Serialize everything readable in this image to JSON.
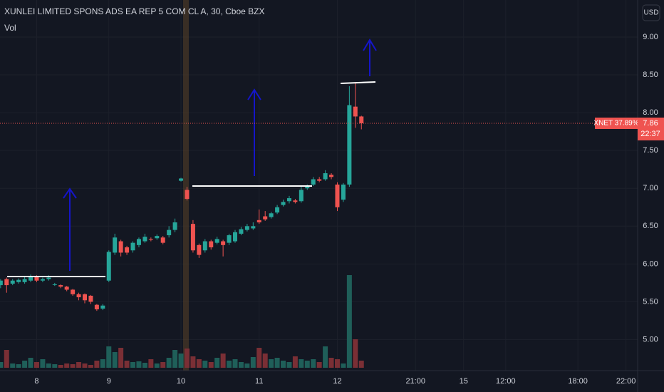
{
  "chart_data": {
    "type": "candlestick",
    "title": "XUNLEI LIMITED SPONS ADS EA REP 5 COM CL A, 30, Cboe BZX",
    "volume_label": "Vol",
    "currency": "USD",
    "symbol_tag": "XNET 37.89%",
    "last_price": 7.86,
    "countdown": "22:37",
    "up_color": "#26a69a",
    "down_color": "#ef5350",
    "volume_up_color": "#1f5f59",
    "volume_down_color": "#7a2f35",
    "grid": true,
    "categories": [
      null,
      null,
      null,
      null,
      null,
      null,
      "8",
      null,
      null,
      null,
      null,
      null,
      null,
      null,
      null,
      null,
      null,
      null,
      "9",
      null,
      null,
      null,
      null,
      null,
      null,
      null,
      null,
      null,
      null,
      null,
      "10",
      null,
      null,
      null,
      null,
      null,
      null,
      null,
      null,
      null,
      null,
      null,
      null,
      "11",
      null,
      null,
      null,
      null,
      null,
      null,
      null,
      null,
      null,
      null,
      null,
      null,
      "12",
      null,
      null,
      null,
      null,
      null,
      null,
      null,
      null,
      null,
      null,
      null,
      null,
      "21:00",
      null,
      null,
      null,
      null,
      null,
      null,
      null,
      "15",
      null,
      null,
      null,
      null,
      null,
      null,
      "12:00",
      null,
      null,
      null,
      null,
      null,
      null,
      null,
      null,
      null,
      null,
      null,
      "18:00",
      null,
      null,
      null,
      null,
      null,
      null,
      null,
      "22:00",
      null
    ],
    "open": [
      5.72,
      5.8,
      5.74,
      5.76,
      5.76,
      5.78,
      5.84,
      5.78,
      5.8,
      5.73,
      5.72,
      5.7,
      5.66,
      5.6,
      5.6,
      5.58,
      5.46,
      5.41,
      5.78,
      6.15,
      6.3,
      6.22,
      6.18,
      6.25,
      6.3,
      6.33,
      6.34,
      6.35,
      6.38,
      6.45,
      7.1,
      6.98,
      6.53,
      6.25,
      6.18,
      6.3,
      6.28,
      6.3,
      6.28,
      6.3,
      6.4,
      6.45,
      6.47,
      6.58,
      6.63,
      6.62,
      6.68,
      6.78,
      6.83,
      6.84,
      6.83,
      7.0,
      7.05,
      7.12,
      7.12,
      7.18,
      7.05,
      6.85,
      7.05,
      8.08,
      7.95,
      null,
      null,
      null,
      null,
      null,
      null,
      null,
      null,
      null,
      null,
      null,
      null,
      null,
      null,
      null,
      null,
      null,
      null,
      null,
      null,
      null,
      null,
      null,
      null,
      null,
      null,
      null,
      null,
      null,
      null,
      null,
      null,
      null,
      null,
      null,
      null,
      null,
      null,
      null,
      null,
      null,
      null,
      null,
      null,
      null
    ],
    "high": [
      5.8,
      5.82,
      5.8,
      5.81,
      5.83,
      5.86,
      5.85,
      5.82,
      5.85,
      5.75,
      5.73,
      5.71,
      5.67,
      5.62,
      5.61,
      5.59,
      5.47,
      5.47,
      6.18,
      6.4,
      6.32,
      6.24,
      6.3,
      6.35,
      6.4,
      6.35,
      6.39,
      6.37,
      6.5,
      6.6,
      7.14,
      7.02,
      6.58,
      6.27,
      6.33,
      6.32,
      6.36,
      6.32,
      6.4,
      6.45,
      6.49,
      6.53,
      6.55,
      6.72,
      6.7,
      6.69,
      6.78,
      6.85,
      6.9,
      6.86,
      7.02,
      7.05,
      7.15,
      7.15,
      7.24,
      7.2,
      7.08,
      7.07,
      8.35,
      8.4,
      7.96,
      null,
      null,
      null,
      null,
      null,
      null,
      null,
      null,
      null,
      null,
      null,
      null,
      null,
      null,
      null,
      null,
      null,
      null,
      null,
      null,
      null,
      null,
      null,
      null,
      null,
      null,
      null,
      null,
      null,
      null,
      null,
      null,
      null,
      null,
      null,
      null,
      null,
      null,
      null,
      null,
      null,
      null,
      null,
      null,
      null
    ],
    "low": [
      5.68,
      5.62,
      5.72,
      5.74,
      5.74,
      5.76,
      5.76,
      5.76,
      5.78,
      5.71,
      5.68,
      5.64,
      5.58,
      5.52,
      5.48,
      5.47,
      5.38,
      5.39,
      5.76,
      6.12,
      6.1,
      6.12,
      6.15,
      6.22,
      6.28,
      6.3,
      6.32,
      6.26,
      6.35,
      6.42,
      7.09,
      6.84,
      6.15,
      6.08,
      6.15,
      6.19,
      6.26,
      6.1,
      6.25,
      6.28,
      6.38,
      6.43,
      6.45,
      6.53,
      6.57,
      6.6,
      6.66,
      6.76,
      6.8,
      6.8,
      6.81,
      6.98,
      7.03,
      7.08,
      7.1,
      7.12,
      6.7,
      6.82,
      7.02,
      7.8,
      7.78,
      null,
      null,
      null,
      null,
      null,
      null,
      null,
      null,
      null,
      null,
      null,
      null,
      null,
      null,
      null,
      null,
      null,
      null,
      null,
      null,
      null,
      null,
      null,
      null,
      null,
      null,
      null,
      null,
      null,
      null,
      null,
      null,
      null,
      null,
      null,
      null,
      null,
      null,
      null,
      null,
      null,
      null,
      null,
      null,
      null
    ],
    "close": [
      5.78,
      5.72,
      5.78,
      5.79,
      5.8,
      5.84,
      5.78,
      5.8,
      5.82,
      5.73,
      5.7,
      5.66,
      5.6,
      5.56,
      5.52,
      5.5,
      5.4,
      5.45,
      6.16,
      6.35,
      6.15,
      6.15,
      6.28,
      6.33,
      6.36,
      6.32,
      6.37,
      6.28,
      6.45,
      6.55,
      7.13,
      6.86,
      6.18,
      6.12,
      6.3,
      6.22,
      6.33,
      6.25,
      6.38,
      6.42,
      6.46,
      6.5,
      6.5,
      6.55,
      6.59,
      6.67,
      6.75,
      6.82,
      6.87,
      6.82,
      6.98,
      7.03,
      7.12,
      7.1,
      7.2,
      7.15,
      6.75,
      7.05,
      8.1,
      7.95,
      7.86,
      null,
      null,
      null,
      null,
      null,
      null,
      null,
      null,
      null,
      null,
      null,
      null,
      null,
      null,
      null,
      null,
      null,
      null,
      null,
      null,
      null,
      null,
      null,
      null,
      null,
      null,
      null,
      null,
      null,
      null,
      null,
      null,
      null,
      null,
      null,
      null,
      null,
      null,
      null,
      null,
      null,
      null,
      null,
      null,
      null
    ],
    "volume": [
      8,
      25,
      6,
      5,
      10,
      14,
      8,
      12,
      6,
      5,
      4,
      6,
      5,
      8,
      6,
      4,
      10,
      12,
      30,
      22,
      28,
      10,
      8,
      9,
      7,
      12,
      6,
      8,
      14,
      25,
      20,
      27,
      16,
      12,
      10,
      8,
      14,
      20,
      10,
      12,
      8,
      6,
      15,
      28,
      20,
      12,
      14,
      10,
      8,
      16,
      12,
      10,
      12,
      8,
      30,
      14,
      12,
      6,
      130,
      40,
      10,
      null,
      null,
      null,
      null,
      null,
      null,
      null,
      null,
      null,
      null,
      null,
      null,
      null,
      null,
      null,
      null,
      null,
      null,
      null,
      null,
      null,
      null,
      null,
      null,
      null,
      null,
      null,
      null,
      null,
      null,
      null,
      null,
      null,
      null,
      null,
      null,
      null,
      null,
      null,
      null,
      null,
      null,
      null,
      null,
      null
    ],
    "ylim": [
      4.59,
      9.49
    ],
    "yticks": [
      {
        "value": 5,
        "label": "5.00"
      },
      {
        "value": 5.5,
        "label": "5.50"
      },
      {
        "value": 6,
        "label": "6.00"
      },
      {
        "value": 6.5,
        "label": "6.50"
      },
      {
        "value": 7,
        "label": "7.00"
      },
      {
        "value": 7.5,
        "label": "7.50"
      },
      {
        "value": 8,
        "label": "8.00"
      },
      {
        "value": 8.5,
        "label": "8.50"
      },
      {
        "value": 9,
        "label": "9.00"
      }
    ]
  }
}
